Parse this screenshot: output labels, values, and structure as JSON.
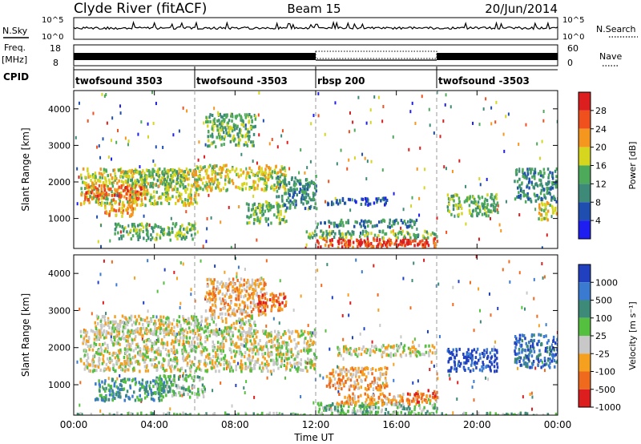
{
  "header": {
    "station": "Clyde River (fitACF)",
    "beam": "Beam 15",
    "date": "20/Jun/2014"
  },
  "strips": {
    "nsky_label": "N.Sky",
    "nsky_ticks": [
      "10^5",
      "10^0"
    ],
    "nsearch_label": "N.Search",
    "nsearch_ticks": [
      "10^5",
      "10^0"
    ],
    "freq_label": "Freq.",
    "freq_unit": "[MHz]",
    "freq_ticks": [
      "18",
      "8"
    ],
    "nave_label": "Nave",
    "nave_ticks": [
      "60",
      "0"
    ],
    "cpid_label": "CPID",
    "cpid_segments": [
      {
        "name": "twofsound 3503",
        "start_h": 0,
        "end_h": 6
      },
      {
        "name": "twofsound -3503",
        "start_h": 6,
        "end_h": 12
      },
      {
        "name": "rbsp 200",
        "start_h": 12,
        "end_h": 18
      },
      {
        "name": "twofsound -3503",
        "start_h": 18,
        "end_h": 24
      }
    ]
  },
  "chart_data": [
    {
      "type": "heatmap",
      "name": "power-panel",
      "ylabel": "Slant Range [km]",
      "yticks": [
        1000,
        2000,
        3000,
        4000
      ],
      "ylim": [
        180,
        4500
      ],
      "xlim_hours": [
        0,
        24
      ],
      "xtick_hours": [
        0,
        4,
        8,
        12,
        16,
        20,
        24
      ],
      "mode_change_hours": [
        6,
        12,
        18
      ],
      "colorbar": {
        "label": "Power [dB]",
        "ticks": [
          "4",
          "8",
          "12",
          "16",
          "20",
          "24",
          "28"
        ],
        "colors": [
          "#1e1ef0",
          "#1e4fb0",
          "#3d8a78",
          "#4caa5a",
          "#d6d61e",
          "#f5961e",
          "#f0501e",
          "#dc1e1e"
        ]
      },
      "regions": [
        {
          "x0": 0.3,
          "x1": 6.2,
          "y0": 1400,
          "y1": 2400,
          "level": 4
        },
        {
          "x0": 0.5,
          "x1": 3.5,
          "y0": 1550,
          "y1": 1950,
          "level": 6
        },
        {
          "x0": 2.5,
          "x1": 5.5,
          "y0": 1900,
          "y1": 2350,
          "level": 3
        },
        {
          "x0": 1.5,
          "x1": 3.0,
          "y0": 1100,
          "y1": 1500,
          "level": 5
        },
        {
          "x0": 6.0,
          "x1": 10.5,
          "y0": 1800,
          "y1": 2500,
          "level": 4
        },
        {
          "x0": 6.5,
          "x1": 9.0,
          "y0": 3000,
          "y1": 3900,
          "level": 3
        },
        {
          "x0": 8.5,
          "x1": 10.5,
          "y0": 900,
          "y1": 1500,
          "level": 3
        },
        {
          "x0": 10.0,
          "x1": 12.0,
          "y0": 1300,
          "y1": 2200,
          "level": 2
        },
        {
          "x0": 12.0,
          "x1": 18.0,
          "y0": 250,
          "y1": 500,
          "level": 6
        },
        {
          "x0": 13.5,
          "x1": 17.5,
          "y0": 300,
          "y1": 450,
          "level": 7
        },
        {
          "x0": 11.5,
          "x1": 18.0,
          "y0": 500,
          "y1": 700,
          "level": 3
        },
        {
          "x0": 12.0,
          "x1": 17.0,
          "y0": 800,
          "y1": 1000,
          "level": 2
        },
        {
          "x0": 12.5,
          "x1": 15.5,
          "y0": 1400,
          "y1": 1600,
          "level": 1
        },
        {
          "x0": 18.5,
          "x1": 21.0,
          "y0": 1100,
          "y1": 1700,
          "level": 3
        },
        {
          "x0": 21.8,
          "x1": 24.0,
          "y0": 1500,
          "y1": 2400,
          "level": 2
        },
        {
          "x0": 23.0,
          "x1": 24.0,
          "y0": 1000,
          "y1": 1500,
          "level": 4
        },
        {
          "x0": 2.0,
          "x1": 6.0,
          "y0": 450,
          "y1": 900,
          "level": 3
        }
      ]
    },
    {
      "type": "heatmap",
      "name": "velocity-panel",
      "ylabel": "Slant Range [km]",
      "xlabel": "Time UT",
      "xtick_labels": [
        "00:00",
        "04:00",
        "08:00",
        "12:00",
        "16:00",
        "20:00",
        "00:00"
      ],
      "yticks": [
        1000,
        2000,
        3000,
        4000
      ],
      "ylim": [
        180,
        4500
      ],
      "xlim_hours": [
        0,
        24
      ],
      "xtick_hours": [
        0,
        4,
        8,
        12,
        16,
        20,
        24
      ],
      "mode_change_hours": [
        6,
        12,
        18
      ],
      "colorbar": {
        "label": "Velocity [m s⁻¹]",
        "ticks": [
          "1000",
          "500",
          "100",
          "25",
          "-25",
          "-100",
          "-500",
          "-1000"
        ],
        "colors": [
          "#2040c0",
          "#3a7ad0",
          "#3d8a78",
          "#55c040",
          "#c8c8c8",
          "#f5a01e",
          "#f06a1e",
          "#dc1e1e"
        ]
      },
      "regions": [
        {
          "x0": 0.3,
          "x1": 12.0,
          "y0": 1400,
          "y1": 2500,
          "level": 4
        },
        {
          "x0": 1.0,
          "x1": 9.0,
          "y0": 2400,
          "y1": 2900,
          "level": 4
        },
        {
          "x0": 6.5,
          "x1": 9.5,
          "y0": 2900,
          "y1": 3900,
          "level": 5
        },
        {
          "x0": 9.0,
          "x1": 10.5,
          "y0": 3000,
          "y1": 3500,
          "level": 6
        },
        {
          "x0": 1.0,
          "x1": 4.5,
          "y0": 600,
          "y1": 1200,
          "level": 2
        },
        {
          "x0": 4.0,
          "x1": 6.5,
          "y0": 700,
          "y1": 1300,
          "level": 3
        },
        {
          "x0": 12.0,
          "x1": 18.0,
          "y0": 250,
          "y1": 550,
          "level": 3
        },
        {
          "x0": 13.0,
          "x1": 17.0,
          "y0": 500,
          "y1": 800,
          "level": 5
        },
        {
          "x0": 12.5,
          "x1": 15.5,
          "y0": 900,
          "y1": 1500,
          "level": 5
        },
        {
          "x0": 16.5,
          "x1": 18.0,
          "y0": 550,
          "y1": 900,
          "level": 6
        },
        {
          "x0": 18.5,
          "x1": 21.0,
          "y0": 1400,
          "y1": 2000,
          "level": 0
        },
        {
          "x0": 21.8,
          "x1": 24.0,
          "y0": 1500,
          "y1": 2400,
          "level": 1
        },
        {
          "x0": 13.0,
          "x1": 18.0,
          "y0": 1800,
          "y1": 2100,
          "level": 4
        },
        {
          "x0": 0.0,
          "x1": 24.0,
          "y0": 180,
          "y1": 280,
          "level": 3
        }
      ]
    }
  ]
}
